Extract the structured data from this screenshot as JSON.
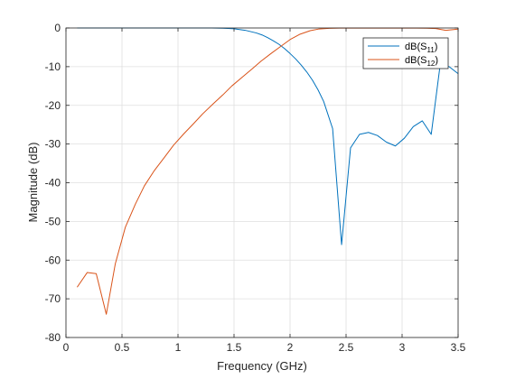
{
  "chart_data": {
    "type": "line",
    "xlabel": "Frequency (GHz)",
    "ylabel": "Magnitude (dB)",
    "xlim": [
      0,
      3.5
    ],
    "ylim": [
      -80,
      0
    ],
    "xticks": [
      0,
      0.5,
      1,
      1.5,
      2,
      2.5,
      3,
      3.5
    ],
    "xtick_labels": [
      "0",
      "0.5",
      "1",
      "1.5",
      "2",
      "2.5",
      "3",
      "3.5"
    ],
    "yticks": [
      0,
      -10,
      -20,
      -30,
      -40,
      -50,
      -60,
      -70,
      -80
    ],
    "ytick_labels": [
      "0",
      "-10",
      "-20",
      "-30",
      "-40",
      "-50",
      "-60",
      "-70",
      "-80"
    ],
    "grid": true,
    "legend_location": "top-right",
    "series": [
      {
        "name": "dB(S11)",
        "legend_base": "dB(S",
        "legend_sub": "11",
        "legend_close": ")",
        "color": "#0072BD",
        "x": [
          0.1,
          0.2,
          0.3,
          0.4,
          0.5,
          0.6,
          0.7,
          0.8,
          0.9,
          1.0,
          1.1,
          1.2,
          1.3,
          1.4,
          1.5,
          1.6,
          1.7,
          1.75,
          1.8,
          1.85,
          1.9,
          1.95,
          2.0,
          2.05,
          2.1,
          2.15,
          2.2,
          2.25,
          2.3,
          2.38,
          2.46,
          2.54,
          2.62,
          2.7,
          2.78,
          2.86,
          2.94,
          3.02,
          3.1,
          3.18,
          3.26,
          3.34,
          3.42,
          3.5
        ],
        "y": [
          0,
          0,
          0,
          0,
          0,
          0,
          0,
          0,
          0,
          0,
          0,
          0,
          0,
          -0.05,
          -0.2,
          -0.6,
          -1.3,
          -1.8,
          -2.5,
          -3.3,
          -4.2,
          -5.3,
          -6.6,
          -8.0,
          -9.6,
          -11.4,
          -13.5,
          -16.0,
          -19.0,
          -26.0,
          -56.0,
          -31.0,
          -27.5,
          -27.0,
          -27.8,
          -29.5,
          -30.5,
          -28.5,
          -25.5,
          -24.0,
          -27.5,
          -9.5,
          -10.0,
          -11.8
        ]
      },
      {
        "name": "dB(S12)",
        "legend_base": "dB(S",
        "legend_sub": "12",
        "legend_close": ")",
        "color": "#D95319",
        "x": [
          0.1,
          0.19,
          0.27,
          0.36,
          0.44,
          0.53,
          0.62,
          0.7,
          0.79,
          0.88,
          0.96,
          1.05,
          1.14,
          1.22,
          1.31,
          1.4,
          1.48,
          1.57,
          1.66,
          1.74,
          1.83,
          1.92,
          2.0,
          2.09,
          2.18,
          2.26,
          2.35,
          2.44,
          2.52,
          2.61,
          2.7,
          2.78,
          2.87,
          2.96,
          3.04,
          3.13,
          3.22,
          3.3,
          3.39,
          3.5
        ],
        "y": [
          -67,
          -63.2,
          -63.5,
          -74.0,
          -61.0,
          -51.5,
          -45.5,
          -40.8,
          -36.8,
          -33.4,
          -30.3,
          -27.4,
          -24.7,
          -22.2,
          -19.7,
          -17.3,
          -15.0,
          -12.8,
          -10.6,
          -8.6,
          -6.6,
          -4.7,
          -3.0,
          -1.6,
          -0.7,
          -0.25,
          -0.08,
          -0.03,
          -0.02,
          -0.02,
          -0.02,
          -0.02,
          -0.02,
          -0.02,
          -0.02,
          -0.02,
          -0.05,
          -0.15,
          -0.6,
          -0.3
        ]
      }
    ]
  }
}
